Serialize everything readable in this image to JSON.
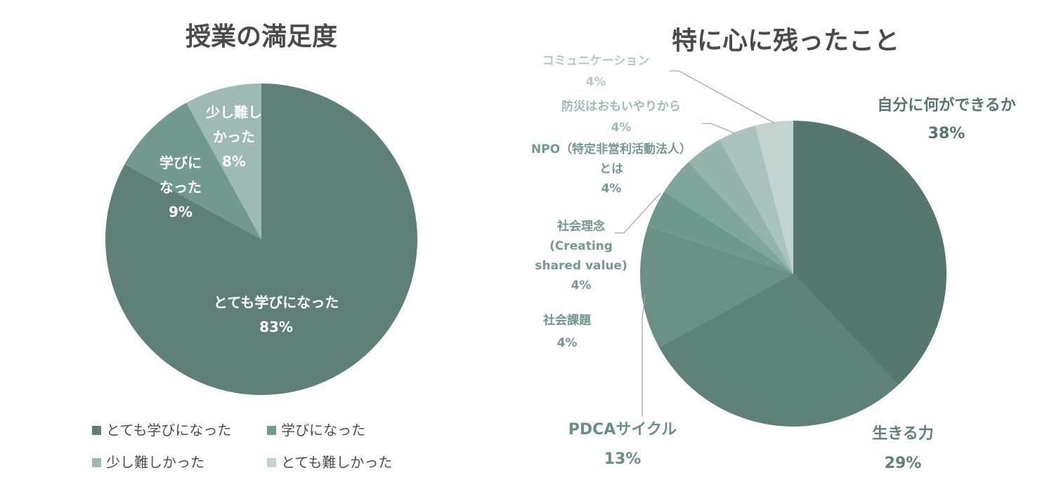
{
  "chart_data": [
    {
      "type": "pie",
      "title": "授業の満足度",
      "slices": [
        {
          "label": "とても学びになった",
          "value": 83,
          "display": "83%",
          "color": "#5e8078"
        },
        {
          "label": "学びになった",
          "value": 9,
          "display": "9%",
          "color": "#72998f"
        },
        {
          "label": "少し難しかった",
          "value": 8,
          "display": "8%",
          "color": "#9dbab3"
        },
        {
          "label": "とても難しかった",
          "value": 0,
          "display": "",
          "color": "#c3d4cf"
        }
      ],
      "slice_label_lines": [
        [
          "とても学びになった"
        ],
        [
          "学びに",
          "なった"
        ],
        [
          "少し難し",
          "かった"
        ]
      ],
      "legend": {
        "position": "bottom"
      }
    },
    {
      "type": "pie",
      "title": "特に心に残ったこと",
      "slices": [
        {
          "label": "自分に何ができるか",
          "value": 38,
          "display": "38%",
          "color": "#56776d"
        },
        {
          "label": "生きる力",
          "value": 29,
          "display": "29%",
          "color": "#5f8278"
        },
        {
          "label": "PDCAサイクル",
          "value": 13,
          "display": "13%",
          "color": "#6a9086"
        },
        {
          "label": "社会課題",
          "value": 4,
          "display": "4%",
          "color": "#6f988d"
        },
        {
          "label": "社会理念 (Creating shared value)",
          "value": 4,
          "display": "4%",
          "color": "#7fa69c"
        },
        {
          "label": "NPO（特定非営利活動法人）とは",
          "value": 4,
          "display": "4%",
          "color": "#94b4ac"
        },
        {
          "label": "防災はおもいやりから",
          "value": 4,
          "display": "4%",
          "color": "#abc3bd"
        },
        {
          "label": "コミュニケーション",
          "value": 4,
          "display": "4%",
          "color": "#c3d4cf"
        }
      ],
      "slice_label_lines": [
        [
          "自分に何ができるか"
        ],
        [
          "生きる力"
        ],
        [
          "PDCAサイクル"
        ],
        [
          "社会課題"
        ],
        [
          "社会理念",
          "(Creating",
          "shared value)"
        ],
        [
          "NPO（特定非営利活動法人）",
          "とは"
        ],
        [
          "防災はおもいやりから"
        ],
        [
          "コミュニケーション"
        ]
      ],
      "label_colors": [
        "#56776d",
        "#5f8278",
        "#6a9086",
        "#6f988d",
        "#72998f",
        "#72998f",
        "#9dbab3",
        "#b5cac5"
      ],
      "legend": "none"
    }
  ]
}
